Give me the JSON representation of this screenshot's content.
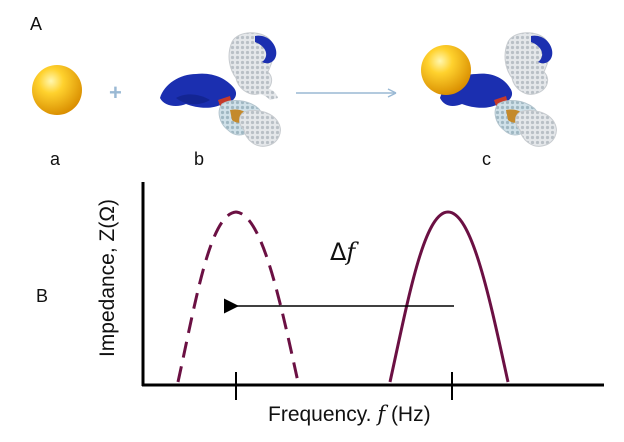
{
  "panel_labels": {
    "a_top": "A",
    "b_bottom": "B"
  },
  "items": {
    "a": "a",
    "b": "b",
    "c": "c"
  },
  "operators": {
    "plus": "+"
  },
  "axes": {
    "ylabel": "Impedance, Z(Ω)",
    "xlabel_prefix": "Frequency. ",
    "xlabel_var": "f",
    "xlabel_unit": " (Hz)"
  },
  "shift_label": {
    "delta": "Δ",
    "var": "f"
  },
  "colors": {
    "gold": "#f2b514",
    "peak": "#6b1043",
    "arrow_light": "#9ab9d4",
    "protein_blue": "#1b2fb0",
    "protein_tan": "#c48a2c",
    "protein_grey": "#d8dde0"
  }
}
